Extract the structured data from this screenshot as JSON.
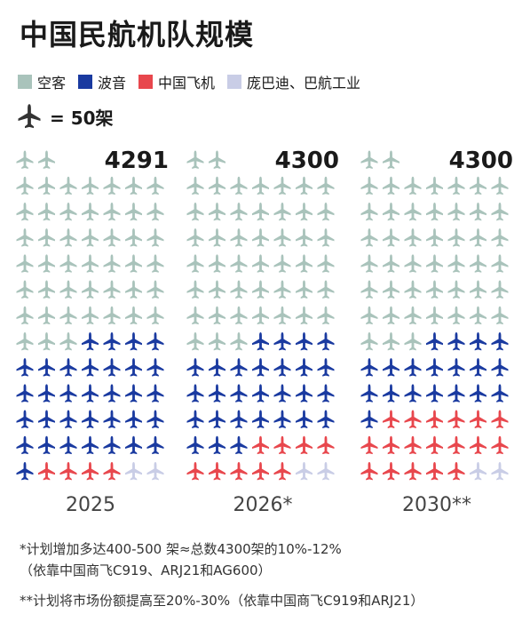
{
  "title": "中国民航机队规模",
  "legend": [
    {
      "label": "空客",
      "color": "#a9c3bb"
    },
    {
      "label": "波音",
      "color": "#1a3aa0"
    },
    {
      "label": "中国飞机",
      "color": "#e8474d"
    },
    {
      "label": "庞巴迪、巴航工业",
      "color": "#c9cde6"
    }
  ],
  "key": {
    "label": "= 50架",
    "icon": "plane-icon"
  },
  "chart_data": [
    {
      "type": "pictogram",
      "category": "2025",
      "total": "4291",
      "unit_per_icon": 50,
      "series": [
        {
          "name": "空客",
          "icons": 47
        },
        {
          "name": "波音",
          "icons": 33
        },
        {
          "name": "中国飞机",
          "icons": 4
        },
        {
          "name": "庞巴迪、巴航工业",
          "icons": 2
        }
      ]
    },
    {
      "type": "pictogram",
      "category": "2026*",
      "total": "4300",
      "unit_per_icon": 50,
      "series": [
        {
          "name": "空客",
          "icons": 47
        },
        {
          "name": "波音",
          "icons": 28
        },
        {
          "name": "中国飞机",
          "icons": 9
        },
        {
          "name": "庞巴迪、巴航工业",
          "icons": 2
        }
      ]
    },
    {
      "type": "pictogram",
      "category": "2030**",
      "total": "4300",
      "unit_per_icon": 50,
      "series": [
        {
          "name": "空客",
          "icons": 47
        },
        {
          "name": "波音",
          "icons": 19
        },
        {
          "name": "中国飞机",
          "icons": 18
        },
        {
          "name": "庞巴迪、巴航工业",
          "icons": 2
        }
      ]
    }
  ],
  "footnotes": {
    "line1": "*计划增加多达400-500 架≈总数4300架的10%-12%",
    "line2": "（依靠中国商飞C919、ARJ21和AG600）",
    "line3": "**计划将市场份额提高至20%-30%（依靠中国商飞C919和ARJ21）"
  }
}
